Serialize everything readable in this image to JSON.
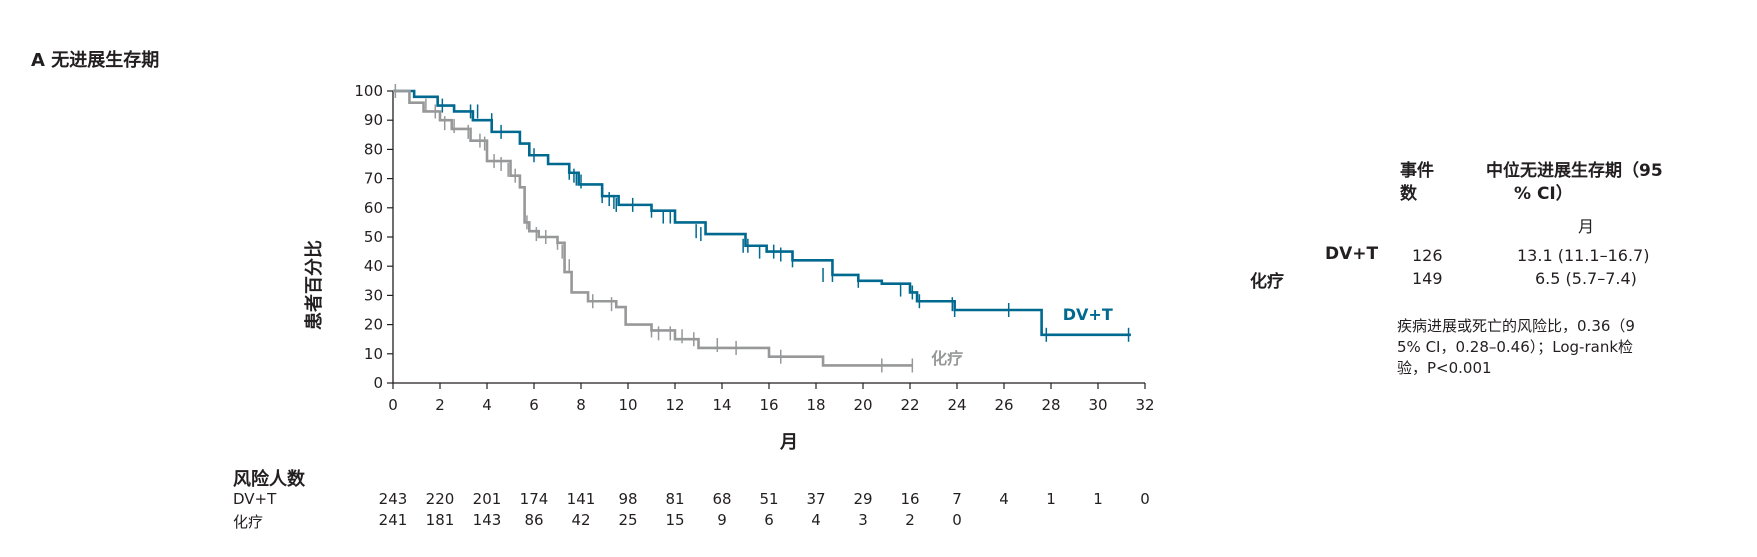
{
  "panel_title": "A 无进展生存期",
  "chart_data": {
    "type": "line",
    "title": "无进展生存期",
    "xlabel": "月",
    "ylabel": "患者百分比",
    "xlim": [
      0,
      32
    ],
    "ylim": [
      0,
      100
    ],
    "xticks": [
      0,
      2,
      4,
      6,
      8,
      10,
      12,
      14,
      16,
      18,
      20,
      22,
      24,
      26,
      28,
      30,
      32
    ],
    "yticks": [
      0,
      10,
      20,
      30,
      40,
      50,
      60,
      70,
      80,
      90,
      100
    ],
    "series": [
      {
        "name": "DV+T",
        "color": "#00698f",
        "x": [
          0,
          0.9,
          1.9,
          2.6,
          3.4,
          4.2,
          5.4,
          5.8,
          6.6,
          7.5,
          7.9,
          8.9,
          9.6,
          11.0,
          12.0,
          13.3,
          15.0,
          15.9,
          17.0,
          18.7,
          19.8,
          20.8,
          22.0,
          22.3,
          23.9,
          27.6,
          31.4
        ],
        "y": [
          100,
          98,
          95,
          93,
          90,
          86,
          82,
          78,
          75,
          72,
          68,
          64,
          61,
          59,
          55,
          51,
          47,
          45,
          42,
          37,
          35,
          34,
          31,
          28,
          25,
          16.5,
          16.5
        ],
        "censor_x": [
          2.1,
          3.3,
          3.6,
          4.2,
          4.6,
          6.0,
          7.5,
          7.7,
          7.8,
          8.0,
          8.9,
          9.2,
          9.4,
          9.5,
          10.2,
          11.0,
          11.5,
          11.8,
          12.9,
          13.1,
          14.9,
          15.1,
          15.6,
          16.2,
          16.5,
          17.0,
          18.3,
          18.7,
          19.8,
          21.6,
          22.1,
          22.4,
          23.8,
          23.9,
          26.2,
          27.8,
          31.3
        ],
        "censor_y": [
          95,
          93,
          93,
          90,
          86,
          78,
          72,
          71,
          70,
          69,
          64,
          63,
          62,
          61,
          61,
          59,
          57,
          57,
          52,
          51,
          47,
          47,
          45,
          45,
          44,
          42,
          37,
          37,
          35,
          32,
          31,
          28,
          27,
          25,
          25,
          16.5,
          16.5
        ],
        "label_x": 28.5,
        "label_y": 21.5
      },
      {
        "name": "化疗",
        "color": "#979899",
        "x": [
          0,
          0.7,
          1.3,
          2.0,
          2.5,
          3.3,
          4.0,
          5.0,
          5.4,
          5.6,
          5.8,
          6.2,
          7.0,
          7.3,
          7.6,
          8.3,
          9.5,
          9.9,
          11.0,
          12.0,
          13.0,
          16.0,
          18.3,
          22.1
        ],
        "y": [
          100,
          96,
          93,
          90,
          87,
          83,
          76,
          71,
          67,
          55,
          52,
          50,
          48,
          38,
          31,
          28,
          26,
          20,
          18,
          15,
          12,
          9,
          6,
          6
        ],
        "censor_x": [
          0.1,
          1.4,
          1.8,
          2.2,
          2.6,
          3.2,
          3.7,
          3.9,
          4.3,
          4.6,
          4.9,
          5.2,
          5.7,
          6.1,
          6.5,
          7.0,
          7.2,
          7.3,
          7.5,
          8.5,
          9.3,
          11.0,
          11.3,
          11.8,
          12.3,
          12.8,
          13.8,
          14.6,
          16.5,
          20.8,
          22.1
        ],
        "censor_y": [
          100,
          95,
          93,
          89,
          88,
          86,
          83,
          82,
          76,
          75,
          73,
          71,
          55,
          51,
          50,
          48,
          45,
          42,
          40,
          28,
          27,
          18,
          17,
          17,
          16,
          15,
          13,
          12,
          9,
          6,
          6
        ],
        "label_x": 22.9,
        "label_y": 6.5
      }
    ]
  },
  "risk_table": {
    "title": "风险人数",
    "months": [
      0,
      2,
      4,
      6,
      8,
      10,
      12,
      14,
      16,
      18,
      20,
      22,
      24,
      26,
      28,
      30,
      32
    ],
    "rows": [
      {
        "label": "DV+T",
        "values": [
          "243",
          "220",
          "201",
          "174",
          "141",
          "98",
          "81",
          "68",
          "51",
          "37",
          "29",
          "16",
          "7",
          "4",
          "1",
          "1",
          "0"
        ]
      },
      {
        "label": "化疗",
        "values": [
          "241",
          "181",
          "143",
          "86",
          "42",
          "25",
          "15",
          "9",
          "6",
          "4",
          "3",
          "2",
          "0"
        ]
      }
    ]
  },
  "summary": {
    "col_events_line1": "事件",
    "col_events_line2": "数",
    "col_median_line1": "中位无进展生存期（95",
    "col_median_line2": "% CI）",
    "col_median_unit": "月",
    "rows": [
      {
        "label": "DV+T",
        "events": "126",
        "median": "13.1 (11.1–16.7)"
      },
      {
        "label": "化疗",
        "events": "149",
        "median": "6.5 (5.7–7.4)"
      }
    ],
    "note_line1": "疾病进展或死亡的风险比，0.36（9",
    "note_line2": "5% CI，0.28–0.46）；Log-rank检",
    "note_line3": "验，P<0.001"
  }
}
